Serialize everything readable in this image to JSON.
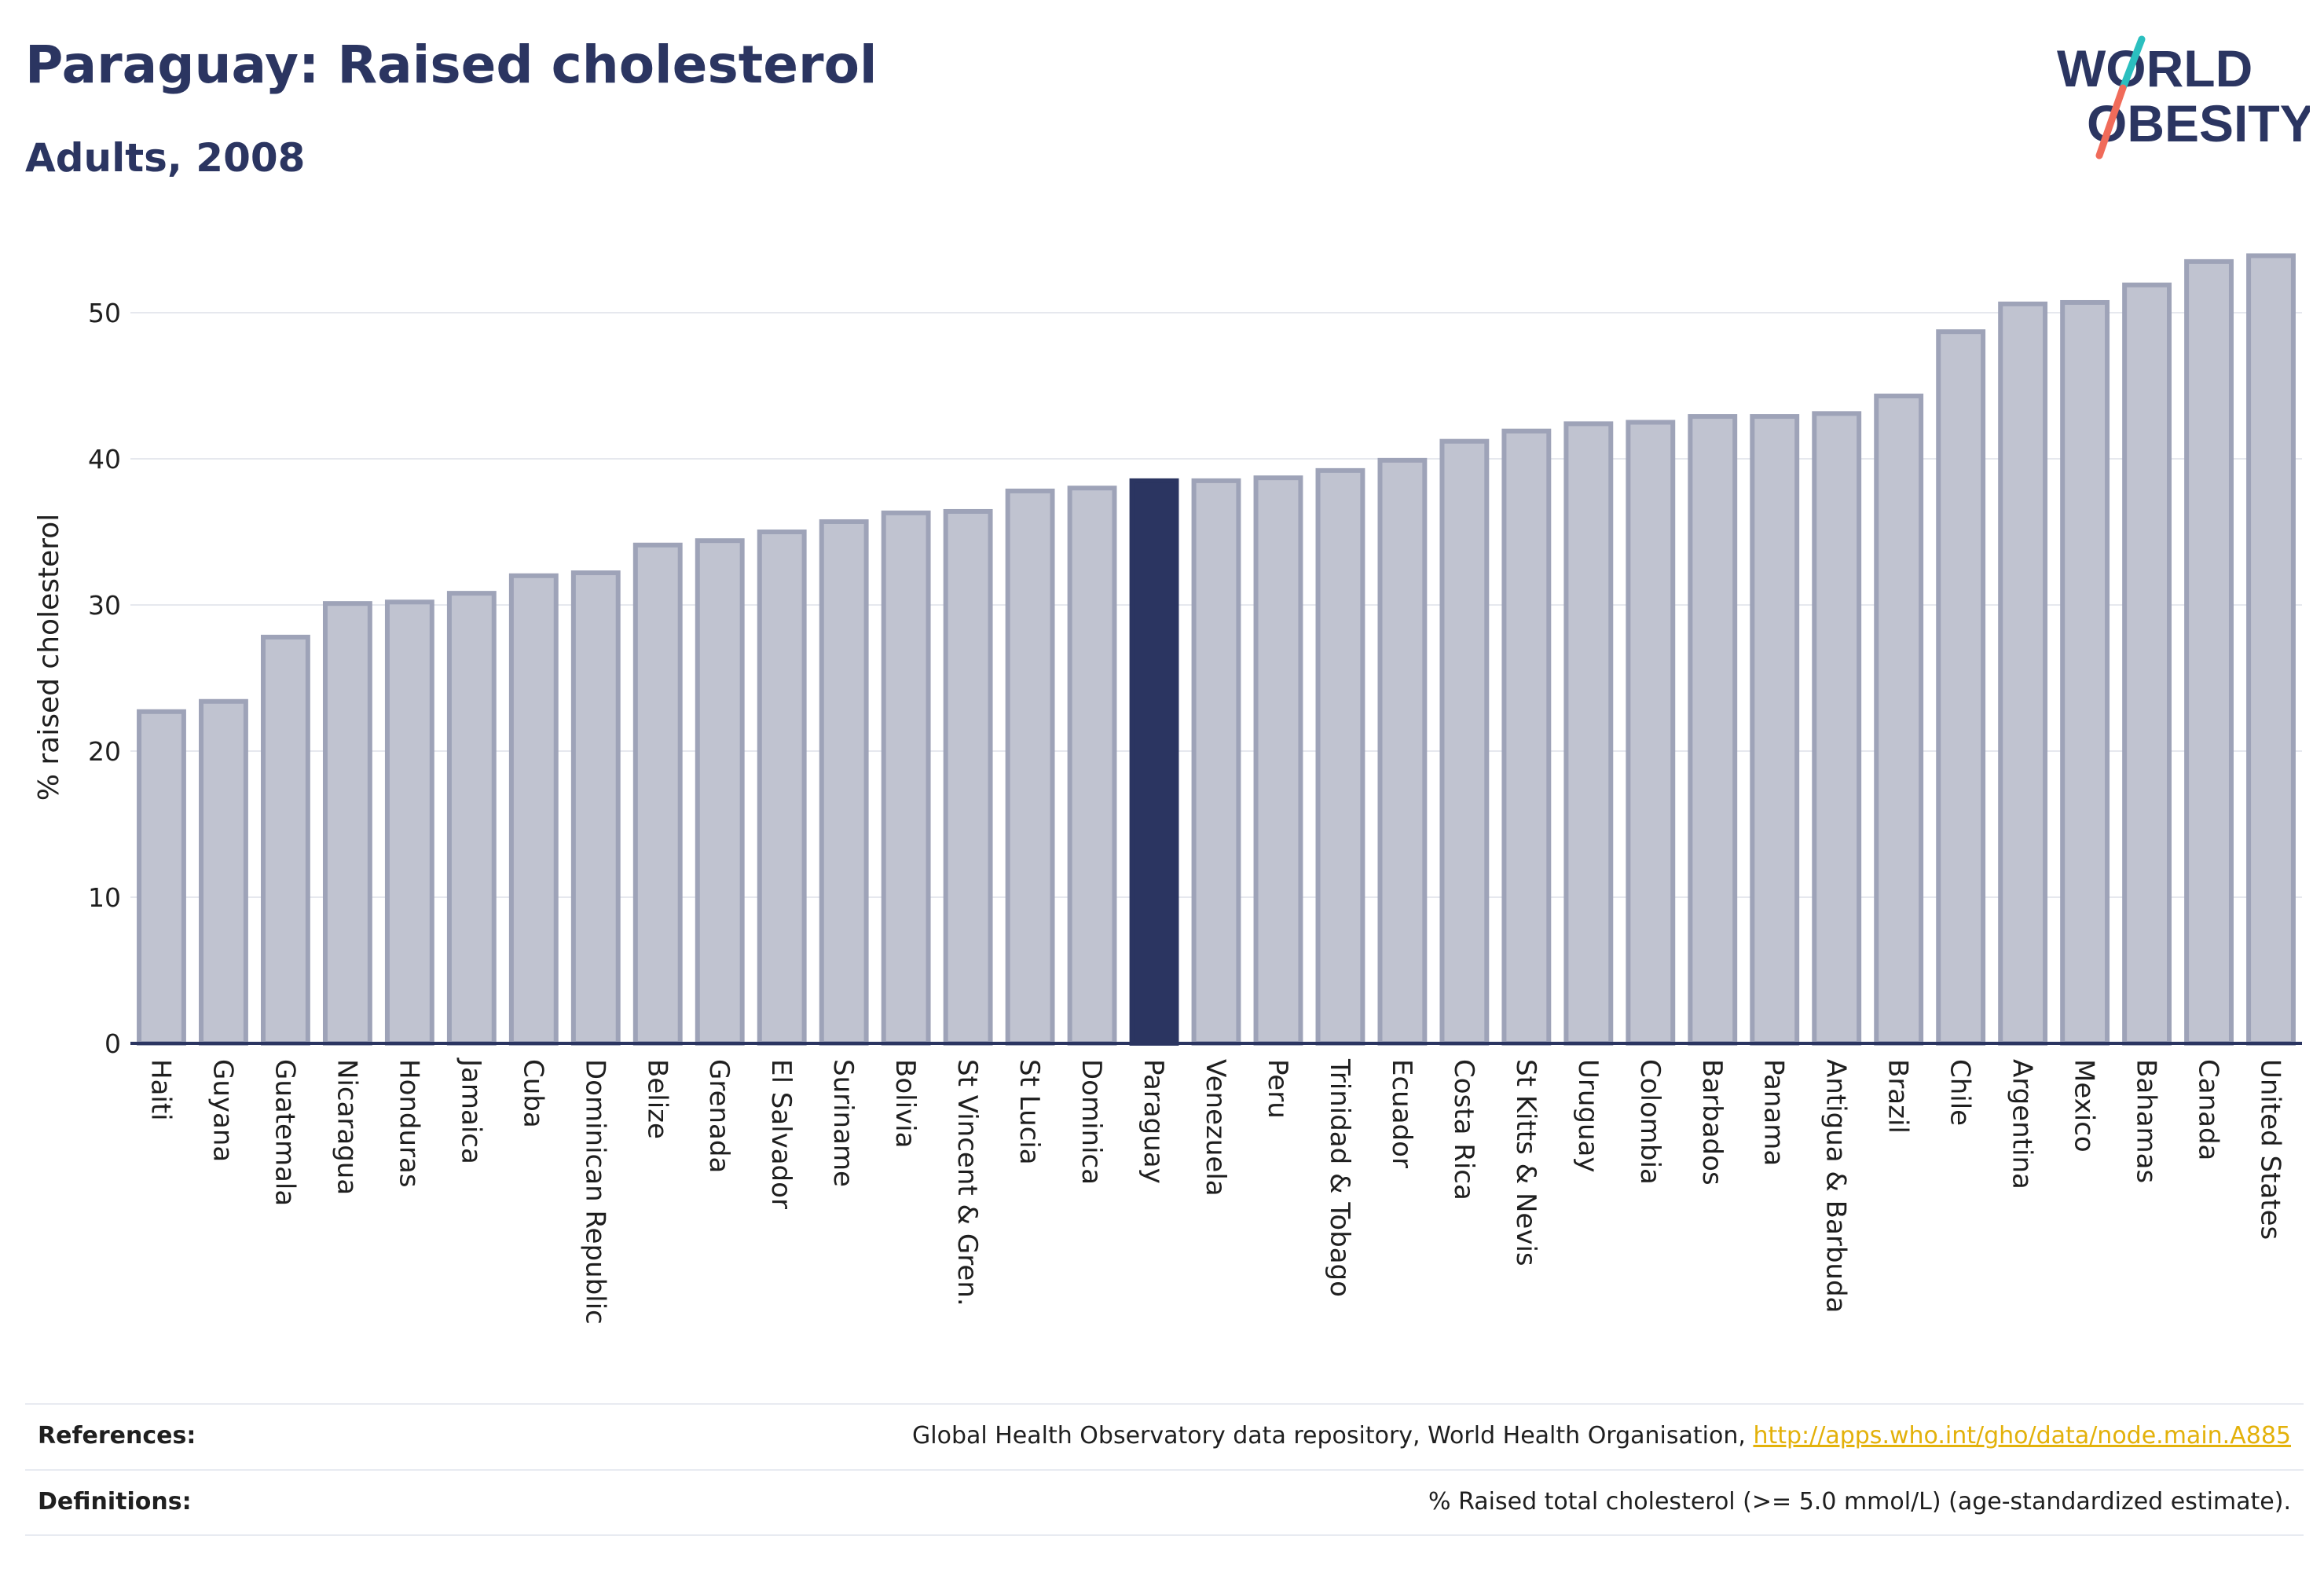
{
  "header": {
    "title": "Paraguay: Raised cholesterol",
    "subtitle": "Adults, 2008"
  },
  "logo": {
    "line1": "WORLD",
    "line2": "OBESITY",
    "colors": {
      "text": "#2b3561",
      "slash_teal": "#2bbfbf",
      "slash_coral": "#f06b5a"
    }
  },
  "chart_data": {
    "type": "bar",
    "title": "Paraguay: Raised cholesterol",
    "subtitle": "Adults, 2008",
    "xlabel": "",
    "ylabel": "% raised cholesterol",
    "ylim": [
      0,
      55
    ],
    "yticks": [
      0,
      10,
      20,
      30,
      40,
      50
    ],
    "grid": true,
    "highlight": "Paraguay",
    "colors": {
      "bar": "#c0c3d0",
      "bar_edge": "#9ea3b8",
      "highlight": "#2b3561"
    },
    "categories": [
      "Haiti",
      "Guyana",
      "Guatemala",
      "Nicaragua",
      "Honduras",
      "Jamaica",
      "Cuba",
      "Dominican Republic",
      "Belize",
      "Grenada",
      "El Salvador",
      "Suriname",
      "Bolivia",
      "St Vincent & Gren.",
      "St Lucia",
      "Dominica",
      "Paraguay",
      "Venezuela",
      "Peru",
      "Trinidad & Tobago",
      "Ecuador",
      "Costa Rica",
      "St Kitts & Nevis",
      "Uruguay",
      "Colombia",
      "Barbados",
      "Panama",
      "Antigua & Barbuda",
      "Brazil",
      "Chile",
      "Argentina",
      "Mexico",
      "Bahamas",
      "Canada",
      "United States"
    ],
    "values": [
      22.7,
      23.4,
      27.8,
      30.1,
      30.2,
      30.8,
      32.0,
      32.2,
      34.1,
      34.4,
      35.0,
      35.7,
      36.3,
      36.4,
      37.8,
      38.0,
      38.5,
      38.5,
      38.7,
      39.2,
      39.9,
      41.2,
      41.9,
      42.4,
      42.5,
      42.9,
      42.9,
      43.1,
      44.3,
      48.7,
      50.6,
      50.7,
      51.9,
      53.5,
      53.9
    ]
  },
  "footer": {
    "references_label": "References:",
    "references_text": "Global Health Observatory data repository, World Health Organisation, ",
    "references_link": "http://apps.who.int/gho/data/node.main.A885",
    "definitions_label": "Definitions:",
    "definitions_text": "% Raised total cholesterol (>= 5.0 mmol/L) (age-standardized estimate)."
  }
}
